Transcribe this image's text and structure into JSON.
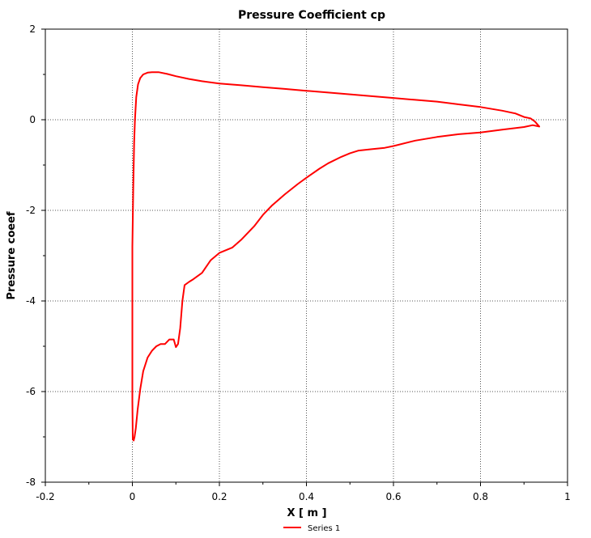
{
  "chart_data": {
    "type": "line",
    "title": "Pressure Coefficient cp",
    "xlabel": "X [ m ]",
    "ylabel": "Pressure coeef",
    "xlim": [
      -0.2,
      1.0
    ],
    "ylim": [
      -8,
      2
    ],
    "xticks": [
      -0.2,
      0,
      0.2,
      0.4,
      0.6,
      0.8,
      1
    ],
    "xtick_labels": [
      "-0.2",
      "0",
      "0.2",
      "0.4",
      "0.6",
      "0.8",
      "1"
    ],
    "yticks": [
      -8,
      -6,
      -4,
      -2,
      0,
      2
    ],
    "ytick_labels": [
      "-8",
      "-6",
      "-4",
      "-2",
      "0",
      "2"
    ],
    "grid": true,
    "legend_position": "bottom-center",
    "series": [
      {
        "name": "Series 1",
        "color": "#ff0000",
        "points": [
          [
            0.935,
            -0.15
          ],
          [
            0.92,
            -0.12
          ],
          [
            0.9,
            -0.16
          ],
          [
            0.85,
            -0.22
          ],
          [
            0.8,
            -0.28
          ],
          [
            0.75,
            -0.32
          ],
          [
            0.7,
            -0.38
          ],
          [
            0.65,
            -0.46
          ],
          [
            0.6,
            -0.58
          ],
          [
            0.58,
            -0.62
          ],
          [
            0.55,
            -0.65
          ],
          [
            0.52,
            -0.68
          ],
          [
            0.5,
            -0.74
          ],
          [
            0.48,
            -0.82
          ],
          [
            0.45,
            -0.96
          ],
          [
            0.43,
            -1.08
          ],
          [
            0.4,
            -1.28
          ],
          [
            0.38,
            -1.42
          ],
          [
            0.35,
            -1.65
          ],
          [
            0.32,
            -1.9
          ],
          [
            0.3,
            -2.1
          ],
          [
            0.28,
            -2.35
          ],
          [
            0.25,
            -2.65
          ],
          [
            0.23,
            -2.82
          ],
          [
            0.2,
            -2.94
          ],
          [
            0.18,
            -3.1
          ],
          [
            0.16,
            -3.38
          ],
          [
            0.14,
            -3.52
          ],
          [
            0.13,
            -3.58
          ],
          [
            0.12,
            -3.65
          ],
          [
            0.115,
            -4.0
          ],
          [
            0.11,
            -4.6
          ],
          [
            0.105,
            -4.95
          ],
          [
            0.1,
            -5.02
          ],
          [
            0.095,
            -4.85
          ],
          [
            0.085,
            -4.85
          ],
          [
            0.075,
            -4.95
          ],
          [
            0.065,
            -4.95
          ],
          [
            0.055,
            -5.0
          ],
          [
            0.045,
            -5.1
          ],
          [
            0.035,
            -5.25
          ],
          [
            0.025,
            -5.55
          ],
          [
            0.018,
            -5.95
          ],
          [
            0.012,
            -6.4
          ],
          [
            0.008,
            -6.8
          ],
          [
            0.005,
            -7.0
          ],
          [
            0.003,
            -7.08
          ],
          [
            0.001,
            -7.05
          ],
          [
            0.0,
            -6.2
          ],
          [
            0.0,
            -4.5
          ],
          [
            0.0,
            -2.8
          ],
          [
            0.002,
            -1.5
          ],
          [
            0.004,
            -0.5
          ],
          [
            0.006,
            0.0
          ],
          [
            0.009,
            0.5
          ],
          [
            0.013,
            0.78
          ],
          [
            0.018,
            0.92
          ],
          [
            0.025,
            1.0
          ],
          [
            0.035,
            1.04
          ],
          [
            0.045,
            1.05
          ],
          [
            0.06,
            1.05
          ],
          [
            0.08,
            1.01
          ],
          [
            0.1,
            0.96
          ],
          [
            0.13,
            0.9
          ],
          [
            0.16,
            0.85
          ],
          [
            0.2,
            0.8
          ],
          [
            0.25,
            0.76
          ],
          [
            0.3,
            0.72
          ],
          [
            0.35,
            0.68
          ],
          [
            0.4,
            0.64
          ],
          [
            0.45,
            0.6
          ],
          [
            0.5,
            0.56
          ],
          [
            0.55,
            0.52
          ],
          [
            0.6,
            0.48
          ],
          [
            0.65,
            0.44
          ],
          [
            0.7,
            0.4
          ],
          [
            0.75,
            0.34
          ],
          [
            0.8,
            0.28
          ],
          [
            0.85,
            0.2
          ],
          [
            0.88,
            0.14
          ],
          [
            0.9,
            0.06
          ],
          [
            0.915,
            0.03
          ],
          [
            0.925,
            -0.04
          ],
          [
            0.935,
            -0.15
          ]
        ]
      }
    ]
  }
}
